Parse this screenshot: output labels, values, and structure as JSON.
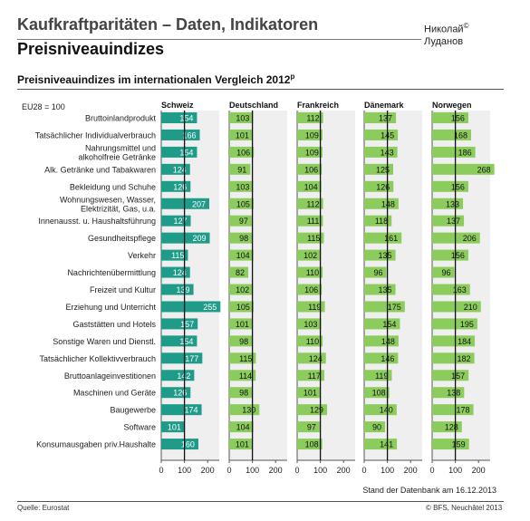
{
  "header": {
    "title": "Kaufkraftparitäten – Daten, Indikatoren",
    "subtitle": "Preisniveauindizes",
    "author_line1": "Николай",
    "author_mark": "©",
    "author_line2": "Луданов"
  },
  "chart_heading": {
    "text": "Preisniveauindizes im internationalen Vergleich 2012",
    "mark": "p"
  },
  "footer": {
    "source": "Quelle: Eurostat",
    "copyright": "© BFS, Neuchâtel 2013",
    "stand": "Stand der Datenbank am 16.12.2013"
  },
  "colors": {
    "swiss_bar": "#1f9b8a",
    "other_bar": "#8ccc5c",
    "panel_bg": "#efefef",
    "reference_line": "#111111"
  },
  "chart_data": {
    "type": "bar",
    "orientation": "horizontal",
    "base_label": "EU28 = 100",
    "reference_value": 100,
    "xlim": [
      0,
      250
    ],
    "xticks": [
      0,
      100,
      200
    ],
    "categories": [
      "Bruttoinlandprodukt",
      "Tatsächlicher Individualverbrauch",
      "Nahrungsmittel und\nalkoholfreie Getränke",
      "Alk. Getränke und Tabakwaren",
      "Bekleidung und Schuhe",
      "Wohnungswesen, Wasser,\nElektrizität, Gas, u.a.",
      "Innenausst. u. Haushaltsführung",
      "Gesundheitspflege",
      "Verkehr",
      "Nachrichtenübermittlung",
      "Freizeit und Kultur",
      "Erziehung und Unterricht",
      "Gaststätten und Hotels",
      "Sonstige Waren und Dienstl.",
      "Tatsächlicher Kollektivverbrauch",
      "Bruttoanlageinvestitionen",
      "Maschinen und Geräte",
      "Baugewerbe",
      "Software",
      "Konsumausgaben priv.Haushalte"
    ],
    "series": [
      {
        "name": "Schweiz",
        "values": [
          154,
          166,
          154,
          124,
          126,
          207,
          127,
          209,
          115,
          124,
          139,
          255,
          157,
          154,
          177,
          142,
          126,
          174,
          101,
          160
        ]
      },
      {
        "name": "Deutschland",
        "values": [
          103,
          101,
          106,
          91,
          103,
          105,
          97,
          98,
          104,
          82,
          102,
          105,
          101,
          98,
          115,
          114,
          98,
          130,
          104,
          101
        ]
      },
      {
        "name": "Frankreich",
        "values": [
          112,
          109,
          109,
          106,
          104,
          112,
          111,
          115,
          102,
          110,
          106,
          119,
          103,
          110,
          124,
          117,
          101,
          129,
          97,
          108
        ]
      },
      {
        "name": "Dänemark",
        "values": [
          137,
          145,
          143,
          125,
          126,
          148,
          118,
          161,
          135,
          96,
          135,
          175,
          154,
          148,
          146,
          119,
          108,
          140,
          90,
          141
        ]
      },
      {
        "name": "Norwegen",
        "values": [
          156,
          168,
          186,
          268,
          156,
          133,
          137,
          206,
          156,
          96,
          163,
          210,
          195,
          184,
          182,
          157,
          138,
          178,
          128,
          159
        ]
      }
    ]
  }
}
